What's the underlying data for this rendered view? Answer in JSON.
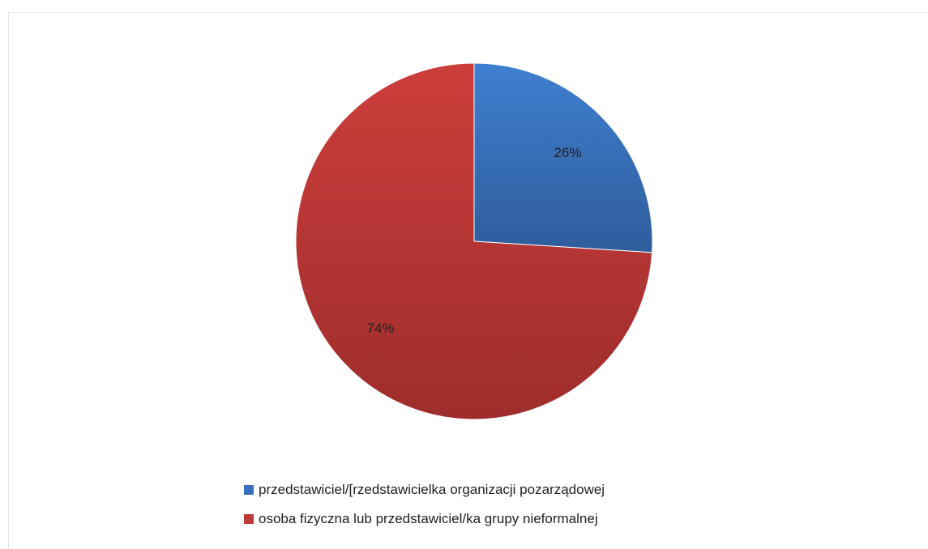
{
  "chart_data": {
    "type": "pie",
    "title": "",
    "categories": [
      "przedstawiciel/[rzedstawicielka organizacji pozarządowej",
      "osoba fizyczna lub przedstawiciel/ka grupy nieformalnej"
    ],
    "values": [
      26,
      74
    ],
    "data_labels": [
      "26%",
      "74%"
    ],
    "colors": [
      "#3a6fbf",
      "#bf3a3a"
    ],
    "start_angle_deg": 0,
    "direction": "clockwise",
    "legend_position": "bottom"
  },
  "legend": {
    "items": [
      {
        "label": "przedstawiciel/[rzedstawicielka organizacji pozarządowej",
        "color": "#3a6fbf"
      },
      {
        "label": "osoba fizyczna lub przedstawiciel/ka grupy nieformalnej",
        "color": "#bf3a3a"
      }
    ]
  }
}
